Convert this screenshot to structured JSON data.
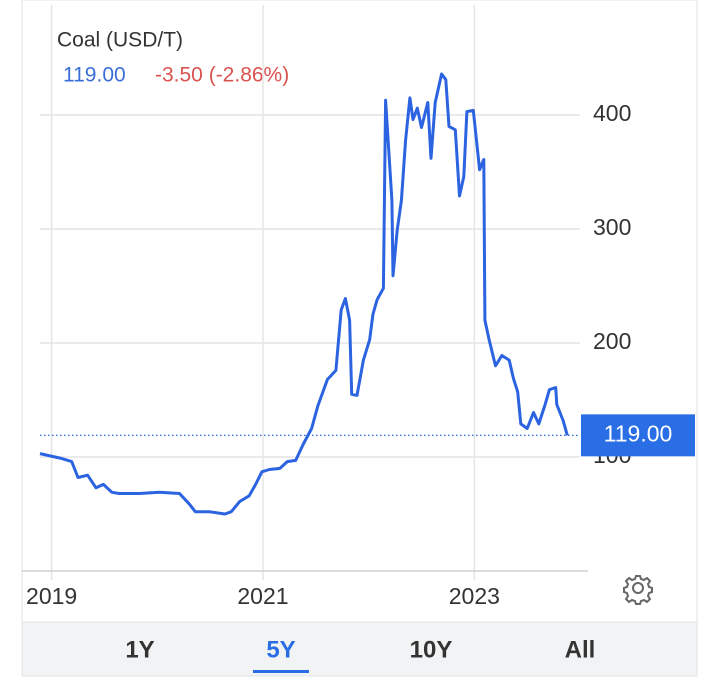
{
  "chart_data": {
    "type": "line",
    "title": "Coal (USD/T)",
    "price": "119.00",
    "change": "-3.50 (-2.86%)",
    "color": "#2b63e0",
    "grid": true,
    "x": [
      2018.89,
      2019.08,
      2019.19,
      2019.25,
      2019.34,
      2019.42,
      2019.49,
      2019.57,
      2019.64,
      2019.83,
      2020.02,
      2020.21,
      2020.3,
      2020.36,
      2020.49,
      2020.64,
      2020.7,
      2020.78,
      2020.87,
      2020.93,
      2020.99,
      2021.06,
      2021.16,
      2021.23,
      2021.31,
      2021.38,
      2021.46,
      2021.52,
      2021.61,
      2021.69,
      2021.74,
      2021.78,
      2021.82,
      2021.84,
      2021.89,
      2021.95,
      2022.01,
      2022.04,
      2022.08,
      2022.14,
      2022.16,
      2022.22,
      2022.23,
      2022.27,
      2022.31,
      2022.35,
      2022.39,
      2022.42,
      2022.46,
      2022.5,
      2022.56,
      2022.59,
      2022.63,
      2022.69,
      2022.73,
      2022.76,
      2022.82,
      2022.86,
      2022.9,
      2022.93,
      2022.99,
      2023.05,
      2023.09,
      2023.1,
      2023.14,
      2023.2,
      2023.26,
      2023.33,
      2023.37,
      2023.41,
      2023.44,
      2023.5,
      2023.56,
      2023.61,
      2023.67,
      2023.71,
      2023.77,
      2023.78,
      2023.84,
      2023.88
    ],
    "values": [
      103,
      99,
      96,
      82,
      84,
      73,
      76,
      69,
      68,
      68,
      69,
      68,
      59,
      52,
      52,
      50,
      52,
      61,
      66,
      76,
      87,
      89,
      90,
      96,
      97,
      111,
      125,
      145,
      168,
      176,
      229,
      239,
      220,
      155,
      154,
      185,
      203,
      225,
      238,
      248,
      413,
      325,
      259,
      299,
      325,
      378,
      415,
      396,
      406,
      389,
      411,
      362,
      411,
      436,
      431,
      390,
      387,
      329,
      346,
      403,
      404,
      352,
      361,
      220,
      203,
      180,
      189,
      185,
      169,
      157,
      129,
      125,
      139,
      129,
      146,
      159,
      161,
      146,
      132,
      119
    ],
    "xlim": [
      2018.89,
      2024.0
    ],
    "xticks": [
      2019,
      2021,
      2023
    ],
    "ylim": [
      0,
      500
    ],
    "yticks": [
      100,
      200,
      300,
      400
    ],
    "ranges": [
      "1Y",
      "5Y",
      "10Y",
      "All"
    ],
    "selected_range": 1
  }
}
